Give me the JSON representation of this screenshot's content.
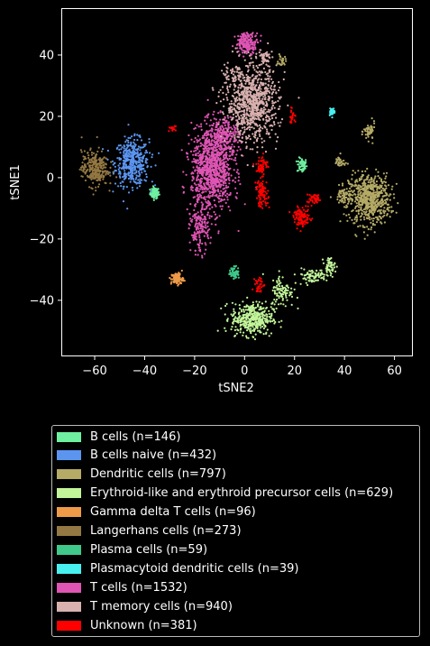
{
  "chart_data": {
    "type": "scatter",
    "xlabel": "tSNE2",
    "ylabel": "tSNE1",
    "xlim": [
      -73,
      67
    ],
    "ylim": [
      -58,
      55
    ],
    "xticks": [
      -60,
      -40,
      -20,
      0,
      20,
      40,
      60
    ],
    "yticks": [
      -40,
      -20,
      0,
      20,
      40
    ],
    "legend_position": "below",
    "series": [
      {
        "name": "B cells (n=146)",
        "color": "#6ef0a0",
        "n": 146,
        "clusters": [
          {
            "cx": -36,
            "cy": -5,
            "sx": 1.2,
            "sy": 1.2,
            "w": 0.6
          },
          {
            "cx": 23,
            "cy": 4,
            "sx": 1.3,
            "sy": 1.6,
            "w": 0.4
          }
        ]
      },
      {
        "name": "B cells naive (n=432)",
        "color": "#5b95f0",
        "n": 432,
        "clusters": [
          {
            "cx": -45,
            "cy": 5,
            "sx": 4.5,
            "sy": 5,
            "w": 1
          }
        ]
      },
      {
        "name": "Dendritic cells (n=797)",
        "color": "#b5aa66",
        "n": 797,
        "clusters": [
          {
            "cx": 50,
            "cy": -7,
            "sx": 5.5,
            "sy": 5.5,
            "w": 0.78
          },
          {
            "cx": 40,
            "cy": -6,
            "sx": 2.5,
            "sy": 2,
            "w": 0.08
          },
          {
            "cx": 50,
            "cy": 15,
            "sx": 1.5,
            "sy": 2,
            "w": 0.07
          },
          {
            "cx": 38,
            "cy": 5,
            "sx": 1.5,
            "sy": 1.5,
            "w": 0.04
          },
          {
            "cx": 15,
            "cy": 38,
            "sx": 1,
            "sy": 1.2,
            "w": 0.03
          }
        ]
      },
      {
        "name": "Erythroid-like and erythroid precursor cells (n=629)",
        "color": "#c2f59a",
        "n": 629,
        "clusters": [
          {
            "cx": 3,
            "cy": -46,
            "sx": 5.5,
            "sy": 3.5,
            "w": 0.65
          },
          {
            "cx": 15,
            "cy": -37,
            "sx": 3,
            "sy": 3.5,
            "w": 0.15
          },
          {
            "cx": 27,
            "cy": -32,
            "sx": 4,
            "sy": 1.5,
            "w": 0.12
          },
          {
            "cx": 34,
            "cy": -29,
            "sx": 1.5,
            "sy": 2,
            "w": 0.08
          }
        ]
      },
      {
        "name": "Gamma delta T cells (n=96)",
        "color": "#ee9a48",
        "n": 96,
        "clusters": [
          {
            "cx": -27,
            "cy": -33,
            "sx": 1.6,
            "sy": 1.3,
            "w": 1
          }
        ]
      },
      {
        "name": "Langerhans cells (n=273)",
        "color": "#947843",
        "n": 273,
        "clusters": [
          {
            "cx": -60,
            "cy": 3,
            "sx": 3.5,
            "sy": 3.8,
            "w": 1
          }
        ]
      },
      {
        "name": "Plasma cells (n=59)",
        "color": "#3fc98a",
        "n": 59,
        "clusters": [
          {
            "cx": -4,
            "cy": -31,
            "sx": 1.3,
            "sy": 1.3,
            "w": 1
          }
        ]
      },
      {
        "name": "Plasmacytoid dendritic cells (n=39)",
        "color": "#48f0f0",
        "n": 39,
        "clusters": [
          {
            "cx": 35,
            "cy": 21.5,
            "sx": 0.8,
            "sy": 0.8,
            "w": 1
          }
        ]
      },
      {
        "name": "T cells (n=1532)",
        "color": "#df55b4",
        "n": 1532,
        "clusters": [
          {
            "cx": -13,
            "cy": 3,
            "sx": 5.5,
            "sy": 9,
            "w": 0.65
          },
          {
            "cx": -18,
            "cy": -17,
            "sx": 2.5,
            "sy": 5,
            "w": 0.1
          },
          {
            "cx": 1,
            "cy": 44,
            "sx": 3,
            "sy": 2.2,
            "w": 0.12
          },
          {
            "cx": -8,
            "cy": 14,
            "sx": 4,
            "sy": 4,
            "w": 0.13
          }
        ]
      },
      {
        "name": "T memory cells (n=940)",
        "color": "#d9b1af",
        "n": 940,
        "clusters": [
          {
            "cx": 3,
            "cy": 24,
            "sx": 7,
            "sy": 8,
            "w": 0.9
          },
          {
            "cx": 8,
            "cy": 39,
            "sx": 2,
            "sy": 2,
            "w": 0.05
          },
          {
            "cx": -5,
            "cy": 33,
            "sx": 3,
            "sy": 2.5,
            "w": 0.05
          }
        ]
      },
      {
        "name": "Unknown (n=381)",
        "color": "#ff0000",
        "n": 381,
        "clusters": [
          {
            "cx": 7,
            "cy": -5,
            "sx": 1.6,
            "sy": 3,
            "w": 0.25
          },
          {
            "cx": 7,
            "cy": 4,
            "sx": 1.5,
            "sy": 2,
            "w": 0.15
          },
          {
            "cx": 23,
            "cy": -13,
            "sx": 2.2,
            "sy": 2,
            "w": 0.28
          },
          {
            "cx": 28,
            "cy": -7,
            "sx": 2,
            "sy": 1.2,
            "w": 0.12
          },
          {
            "cx": 19,
            "cy": 20,
            "sx": 1,
            "sy": 1.5,
            "w": 0.06
          },
          {
            "cx": 6,
            "cy": -35,
            "sx": 1.2,
            "sy": 2,
            "w": 0.09
          },
          {
            "cx": -29,
            "cy": 16,
            "sx": 1,
            "sy": 0.6,
            "w": 0.05
          }
        ]
      }
    ]
  }
}
